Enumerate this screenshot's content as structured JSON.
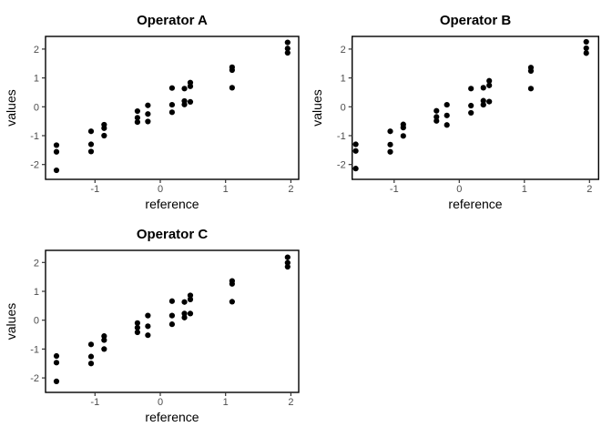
{
  "figure": {
    "background": "#ffffff",
    "point_color": "#000000",
    "panel_border_color": "#000000",
    "tick_color": "#333333",
    "tick_label_color": "#4d4d4d",
    "title_color": "#000000"
  },
  "chart_data": [
    {
      "type": "scatter",
      "title": "Operator A",
      "xlabel": "reference",
      "ylabel": "values",
      "x_ticks": [
        -1,
        0,
        1,
        2
      ],
      "y_ticks": [
        2,
        1,
        0,
        -1,
        -2
      ],
      "xlim": [
        -1.76,
        2.12
      ],
      "ylim": [
        -2.5,
        2.45
      ],
      "grid": false,
      "legend": false,
      "points": [
        [
          -1.59,
          -1.33
        ],
        [
          -1.59,
          -1.56
        ],
        [
          -1.59,
          -2.2
        ],
        [
          -1.06,
          -0.85
        ],
        [
          -1.06,
          -1.3
        ],
        [
          -1.06,
          -1.55
        ],
        [
          -0.86,
          -0.62
        ],
        [
          -0.86,
          -0.74
        ],
        [
          -0.86,
          -1.0
        ],
        [
          -0.35,
          -0.15
        ],
        [
          -0.35,
          -0.38
        ],
        [
          -0.35,
          -0.53
        ],
        [
          -0.19,
          0.05
        ],
        [
          -0.19,
          -0.25
        ],
        [
          -0.19,
          -0.51
        ],
        [
          0.18,
          0.65
        ],
        [
          0.18,
          0.07
        ],
        [
          0.18,
          -0.19
        ],
        [
          0.37,
          0.63
        ],
        [
          0.37,
          0.2
        ],
        [
          0.37,
          0.08
        ],
        [
          0.46,
          0.84
        ],
        [
          0.46,
          0.71
        ],
        [
          0.46,
          0.17
        ],
        [
          1.1,
          1.37
        ],
        [
          1.1,
          1.27
        ],
        [
          1.1,
          0.66
        ],
        [
          1.95,
          2.23
        ],
        [
          1.95,
          2.02
        ],
        [
          1.95,
          1.87
        ]
      ]
    },
    {
      "type": "scatter",
      "title": "Operator B",
      "xlabel": "reference",
      "ylabel": "values",
      "x_ticks": [
        -1,
        0,
        1,
        2
      ],
      "y_ticks": [
        2,
        1,
        0,
        -1,
        -2
      ],
      "xlim": [
        -1.76,
        2.12
      ],
      "ylim": [
        -2.5,
        2.45
      ],
      "grid": false,
      "legend": false,
      "points": [
        [
          -1.59,
          -1.3
        ],
        [
          -1.59,
          -1.53
        ],
        [
          -1.59,
          -2.14
        ],
        [
          -1.06,
          -0.85
        ],
        [
          -1.06,
          -1.31
        ],
        [
          -1.06,
          -1.56
        ],
        [
          -0.86,
          -0.61
        ],
        [
          -0.86,
          -0.72
        ],
        [
          -0.86,
          -1.01
        ],
        [
          -0.35,
          -0.14
        ],
        [
          -0.35,
          -0.35
        ],
        [
          -0.35,
          -0.49
        ],
        [
          -0.19,
          0.07
        ],
        [
          -0.19,
          -0.3
        ],
        [
          -0.19,
          -0.63
        ],
        [
          0.18,
          0.63
        ],
        [
          0.18,
          0.04
        ],
        [
          0.18,
          -0.21
        ],
        [
          0.37,
          0.66
        ],
        [
          0.37,
          0.21
        ],
        [
          0.37,
          0.07
        ],
        [
          0.46,
          0.9
        ],
        [
          0.46,
          0.74
        ],
        [
          0.46,
          0.18
        ],
        [
          1.1,
          1.36
        ],
        [
          1.1,
          1.24
        ],
        [
          1.1,
          0.63
        ],
        [
          1.95,
          2.25
        ],
        [
          1.95,
          2.03
        ],
        [
          1.95,
          1.86
        ]
      ]
    },
    {
      "type": "scatter",
      "title": "Operator C",
      "xlabel": "reference",
      "ylabel": "values",
      "x_ticks": [
        -1,
        0,
        1,
        2
      ],
      "y_ticks": [
        2,
        1,
        0,
        -1,
        -2
      ],
      "xlim": [
        -1.76,
        2.12
      ],
      "ylim": [
        -2.5,
        2.45
      ],
      "grid": false,
      "legend": false,
      "points": [
        [
          -1.59,
          -1.24
        ],
        [
          -1.59,
          -1.47
        ],
        [
          -1.59,
          -2.12
        ],
        [
          -1.06,
          -0.84
        ],
        [
          -1.06,
          -1.26
        ],
        [
          -1.06,
          -1.5
        ],
        [
          -0.86,
          -0.55
        ],
        [
          -0.86,
          -0.69
        ],
        [
          -0.86,
          -1.0
        ],
        [
          -0.35,
          -0.1
        ],
        [
          -0.35,
          -0.26
        ],
        [
          -0.35,
          -0.42
        ],
        [
          -0.19,
          0.16
        ],
        [
          -0.19,
          -0.21
        ],
        [
          -0.19,
          -0.52
        ],
        [
          0.18,
          0.66
        ],
        [
          0.18,
          0.16
        ],
        [
          0.18,
          -0.14
        ],
        [
          0.37,
          0.63
        ],
        [
          0.37,
          0.23
        ],
        [
          0.37,
          0.09
        ],
        [
          0.46,
          0.86
        ],
        [
          0.46,
          0.72
        ],
        [
          0.46,
          0.23
        ],
        [
          1.1,
          1.36
        ],
        [
          1.1,
          1.26
        ],
        [
          1.1,
          0.64
        ],
        [
          1.95,
          2.18
        ],
        [
          1.95,
          1.99
        ],
        [
          1.95,
          1.85
        ]
      ]
    }
  ]
}
